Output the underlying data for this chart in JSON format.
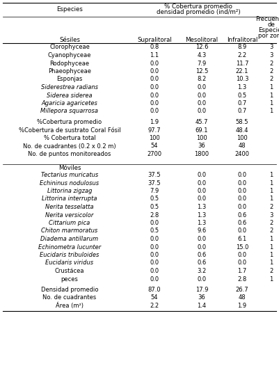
{
  "title_line1": "% Cobertura promedio",
  "title_line2": "densidad promedio (ind/m²)",
  "col_header_species": "Especies",
  "col_header_supra": "Supralitoral",
  "col_header_meso": "Mesolitoral",
  "col_header_infra": "Infralitoral",
  "col_header_freq": [
    "Frecuencia",
    "de",
    "Especies",
    "por zona"
  ],
  "subheader_sesiles": "Sésiles",
  "subheader_moviles": "Móviles",
  "sesiles_rows": [
    [
      "Clorophyceae",
      "0.8",
      "12.6",
      "8.9",
      "3"
    ],
    [
      "Cyanophyceae",
      "1.1",
      "4.3",
      "2.2",
      "3"
    ],
    [
      "Rodophyceae",
      "0.0",
      "7.9",
      "11.7",
      "2"
    ],
    [
      "Phaeophyceae",
      "0.0",
      "12.5",
      "22.1",
      "2"
    ],
    [
      "Esponjas",
      "0.0",
      "8.2",
      "10.3",
      "2"
    ],
    [
      "Siderestrea radians",
      "0.0",
      "0.0",
      "1.3",
      "1"
    ],
    [
      "Siderea siderea",
      "0.0",
      "0.0",
      "0.5",
      "1"
    ],
    [
      "Agaricia agaricetes",
      "0.0",
      "0.0",
      "0.7",
      "1"
    ],
    [
      "Millepora squarrosa",
      "0.0",
      "0.0",
      "0.7",
      "1"
    ]
  ],
  "sesiles_italic": [
    false,
    false,
    false,
    false,
    false,
    true,
    true,
    true,
    true
  ],
  "sesiles_summary": [
    [
      "%Cobertura promedio",
      "1.9",
      "45.7",
      "58.5"
    ],
    [
      "%Cobertura de sustrato Coral Fósil",
      "97.7",
      "69.1",
      "48.4"
    ],
    [
      "% Cobertura total",
      "100",
      "100",
      "100"
    ],
    [
      "No. de cuadrantes (0.2 x 0.2 m)",
      "54",
      "36",
      "48"
    ],
    [
      "No. de puntos monitoreados",
      "2700",
      "1800",
      "2400"
    ]
  ],
  "moviles_rows": [
    [
      "Tectarius muricatus",
      "37.5",
      "0.0",
      "0.0",
      "1"
    ],
    [
      "Echininus nodulosus",
      "37.5",
      "0.0",
      "0.0",
      "1"
    ],
    [
      "Littorina zigzag",
      "7.9",
      "0.0",
      "0.0",
      "1"
    ],
    [
      "Littorina interrupta",
      "0.5",
      "0.0",
      "0.0",
      "1"
    ],
    [
      "Nerita tesselatta",
      "0.5",
      "1.3",
      "0.0",
      "2"
    ],
    [
      "Nerita versicolor",
      "2.8",
      "1.3",
      "0.6",
      "3"
    ],
    [
      "Cittarium pica",
      "0.0",
      "1.3",
      "0.6",
      "2"
    ],
    [
      "Chiton marmoratus",
      "0.5",
      "9.6",
      "0.0",
      "2"
    ],
    [
      "Diadema antillarum",
      "0.0",
      "0.0",
      "6.1",
      "1"
    ],
    [
      "Echinometra lucunter",
      "0.0",
      "0.0",
      "15.0",
      "1"
    ],
    [
      "Eucidaris tribuloides",
      "0.0",
      "0.6",
      "0.0",
      "1"
    ],
    [
      "Eucidaris viridus",
      "0.0",
      "0.6",
      "0.0",
      "1"
    ],
    [
      "Crustácea",
      "0.0",
      "3.2",
      "1.7",
      "2"
    ],
    [
      "peces",
      "0.0",
      "0.0",
      "2.8",
      "1"
    ]
  ],
  "moviles_italic": [
    true,
    true,
    true,
    true,
    true,
    true,
    true,
    true,
    true,
    true,
    true,
    true,
    false,
    false
  ],
  "moviles_summary": [
    [
      "Densidad promedio",
      "87.0",
      "17.9",
      "26.7"
    ],
    [
      "No. de cuadrantes",
      "54",
      "36",
      "48"
    ],
    [
      "Área (m²)",
      "2.2",
      "1.4",
      "1.9"
    ]
  ],
  "bg_color": "white",
  "text_color": "black",
  "line_color": "black",
  "fontsize": 6.0,
  "header_fontsize": 6.2
}
